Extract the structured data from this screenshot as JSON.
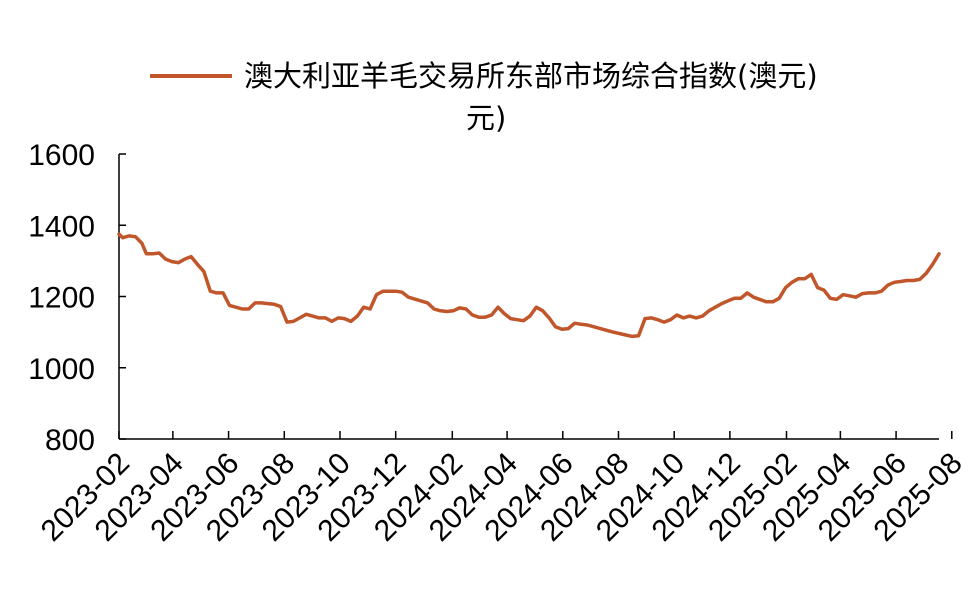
{
  "chart_data": {
    "type": "line",
    "legend_position": "top",
    "grid": false,
    "ylim": [
      800,
      1600
    ],
    "yticks": [
      "800",
      "1000",
      "1200",
      "1400",
      "1600"
    ],
    "x_tick_labels": [
      "2023-02",
      "2023-04",
      "2023-06",
      "2023-08",
      "2023-10",
      "2023-12",
      "2024-02",
      "2024-04",
      "2024-06",
      "2024-08",
      "2024-10",
      "2024-12",
      "2025-02",
      "2025-04",
      "2025-06",
      "2025-08"
    ],
    "series": [
      {
        "name": "澳大利亚羊毛交易所东部市场综合指数(澳元)",
        "legend_overflow_text": "元)",
        "color": "#c0562a",
        "points": [
          [
            "2023-02-01",
            1375
          ],
          [
            "2023-02-05",
            1365
          ],
          [
            "2023-02-12",
            1370
          ],
          [
            "2023-02-19",
            1368
          ],
          [
            "2023-02-26",
            1350
          ],
          [
            "2023-03-03",
            1320
          ],
          [
            "2023-03-10",
            1320
          ],
          [
            "2023-03-17",
            1322
          ],
          [
            "2023-03-24",
            1305
          ],
          [
            "2023-03-31",
            1298
          ],
          [
            "2023-04-07",
            1295
          ],
          [
            "2023-04-14",
            1305
          ],
          [
            "2023-04-21",
            1312
          ],
          [
            "2023-04-28",
            1290
          ],
          [
            "2023-05-05",
            1270
          ],
          [
            "2023-05-12",
            1215
          ],
          [
            "2023-05-19",
            1210
          ],
          [
            "2023-05-26",
            1210
          ],
          [
            "2023-06-02",
            1175
          ],
          [
            "2023-06-09",
            1170
          ],
          [
            "2023-06-16",
            1165
          ],
          [
            "2023-06-23",
            1165
          ],
          [
            "2023-06-30",
            1182
          ],
          [
            "2023-07-07",
            1182
          ],
          [
            "2023-07-14",
            1180
          ],
          [
            "2023-07-21",
            1178
          ],
          [
            "2023-07-28",
            1172
          ],
          [
            "2023-08-04",
            1128
          ],
          [
            "2023-08-11",
            1130
          ],
          [
            "2023-08-18",
            1140
          ],
          [
            "2023-08-25",
            1150
          ],
          [
            "2023-09-01",
            1145
          ],
          [
            "2023-09-08",
            1140
          ],
          [
            "2023-09-15",
            1140
          ],
          [
            "2023-09-22",
            1130
          ],
          [
            "2023-09-29",
            1140
          ],
          [
            "2023-10-06",
            1138
          ],
          [
            "2023-10-13",
            1130
          ],
          [
            "2023-10-20",
            1145
          ],
          [
            "2023-10-27",
            1170
          ],
          [
            "2023-11-03",
            1165
          ],
          [
            "2023-11-10",
            1205
          ],
          [
            "2023-11-17",
            1215
          ],
          [
            "2023-11-24",
            1215
          ],
          [
            "2023-12-01",
            1215
          ],
          [
            "2023-12-08",
            1212
          ],
          [
            "2023-12-15",
            1198
          ],
          [
            "2024-01-05",
            1182
          ],
          [
            "2024-01-12",
            1165
          ],
          [
            "2024-01-19",
            1160
          ],
          [
            "2024-01-26",
            1158
          ],
          [
            "2024-02-02",
            1160
          ],
          [
            "2024-02-09",
            1168
          ],
          [
            "2024-02-16",
            1165
          ],
          [
            "2024-02-23",
            1148
          ],
          [
            "2024-03-01",
            1142
          ],
          [
            "2024-03-08",
            1142
          ],
          [
            "2024-03-15",
            1148
          ],
          [
            "2024-03-22",
            1170
          ],
          [
            "2024-03-29",
            1152
          ],
          [
            "2024-04-05",
            1138
          ],
          [
            "2024-04-12",
            1135
          ],
          [
            "2024-04-19",
            1132
          ],
          [
            "2024-04-26",
            1145
          ],
          [
            "2024-05-03",
            1170
          ],
          [
            "2024-05-10",
            1160
          ],
          [
            "2024-05-17",
            1140
          ],
          [
            "2024-05-24",
            1115
          ],
          [
            "2024-05-31",
            1108
          ],
          [
            "2024-06-07",
            1110
          ],
          [
            "2024-06-14",
            1125
          ],
          [
            "2024-06-21",
            1122
          ],
          [
            "2024-06-28",
            1120
          ],
          [
            "2024-07-12",
            1110
          ],
          [
            "2024-07-26",
            1100
          ],
          [
            "2024-08-09",
            1092
          ],
          [
            "2024-08-16",
            1088
          ],
          [
            "2024-08-23",
            1090
          ],
          [
            "2024-08-30",
            1138
          ],
          [
            "2024-09-06",
            1140
          ],
          [
            "2024-09-13",
            1135
          ],
          [
            "2024-09-20",
            1128
          ],
          [
            "2024-09-27",
            1135
          ],
          [
            "2024-10-04",
            1148
          ],
          [
            "2024-10-11",
            1140
          ],
          [
            "2024-10-18",
            1145
          ],
          [
            "2024-10-25",
            1140
          ],
          [
            "2024-11-01",
            1145
          ],
          [
            "2024-11-08",
            1160
          ],
          [
            "2024-11-15",
            1170
          ],
          [
            "2024-11-22",
            1180
          ],
          [
            "2024-11-29",
            1188
          ],
          [
            "2024-12-06",
            1195
          ],
          [
            "2024-12-13",
            1195
          ],
          [
            "2024-12-20",
            1210
          ],
          [
            "2024-12-27",
            1198
          ],
          [
            "2025-01-10",
            1185
          ],
          [
            "2025-01-17",
            1185
          ],
          [
            "2025-01-24",
            1195
          ],
          [
            "2025-01-31",
            1225
          ],
          [
            "2025-02-07",
            1240
          ],
          [
            "2025-02-14",
            1250
          ],
          [
            "2025-02-21",
            1250
          ],
          [
            "2025-02-28",
            1262
          ],
          [
            "2025-03-07",
            1225
          ],
          [
            "2025-03-14",
            1218
          ],
          [
            "2025-03-21",
            1195
          ],
          [
            "2025-03-28",
            1192
          ],
          [
            "2025-04-04",
            1205
          ],
          [
            "2025-04-11",
            1202
          ],
          [
            "2025-04-18",
            1198
          ],
          [
            "2025-04-25",
            1208
          ],
          [
            "2025-05-02",
            1210
          ],
          [
            "2025-05-09",
            1210
          ],
          [
            "2025-05-16",
            1215
          ],
          [
            "2025-05-23",
            1232
          ],
          [
            "2025-05-30",
            1240
          ],
          [
            "2025-06-06",
            1242
          ],
          [
            "2025-06-13",
            1245
          ],
          [
            "2025-06-20",
            1245
          ],
          [
            "2025-06-27",
            1248
          ],
          [
            "2025-07-04",
            1265
          ],
          [
            "2025-07-11",
            1290
          ],
          [
            "2025-07-18",
            1320
          ]
        ]
      }
    ]
  }
}
